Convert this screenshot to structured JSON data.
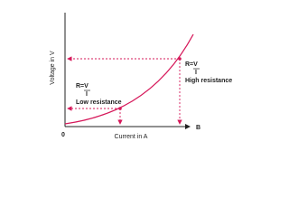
{
  "axes": {
    "y_label": "Voltage in V",
    "x_label": "Current in A",
    "origin": "0",
    "x_end": "B"
  },
  "annotations": [
    {
      "formula": "R=V",
      "denominator": "I",
      "label": "High resistance"
    },
    {
      "formula": "R=V",
      "denominator": "I",
      "label": "Low resistance"
    }
  ]
}
